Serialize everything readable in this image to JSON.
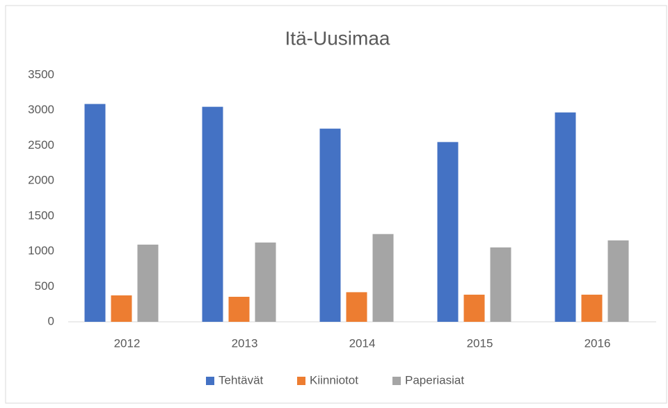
{
  "chart_data": {
    "type": "bar",
    "title": "Itä-Uusimaa",
    "categories": [
      "2012",
      "2013",
      "2014",
      "2015",
      "2016"
    ],
    "series": [
      {
        "name": "Tehtävät",
        "color": "#4472c4",
        "values": [
          3090,
          3050,
          2740,
          2550,
          2970
        ]
      },
      {
        "name": "Kiinniotot",
        "color": "#ed7d31",
        "values": [
          375,
          355,
          420,
          385,
          385
        ]
      },
      {
        "name": "Paperiasiat",
        "color": "#a5a5a5",
        "values": [
          1095,
          1125,
          1245,
          1055,
          1155
        ]
      }
    ],
    "ylim": [
      0,
      3500
    ],
    "yticks": [
      0,
      500,
      1000,
      1500,
      2000,
      2500,
      3000,
      3500
    ],
    "grid": false,
    "legend": "bottom"
  }
}
